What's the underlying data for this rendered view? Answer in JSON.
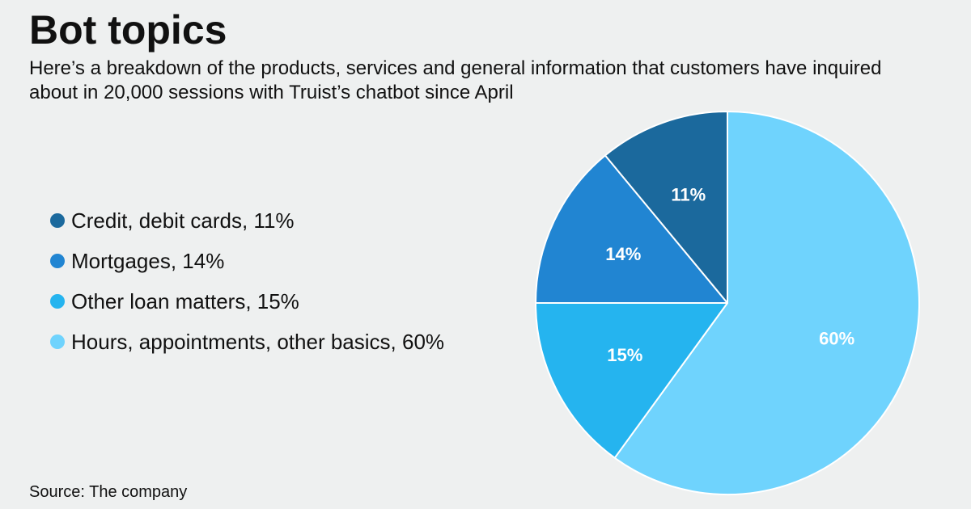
{
  "title": "Bot topics",
  "subtitle": "Here’s a breakdown of the products, services and general information that customers have inquired about in 20,000 sessions with Truist’s chatbot since April",
  "source": "Source: The company",
  "chart_data": {
    "type": "pie",
    "title": "Bot topics",
    "legend_position": "left",
    "start_angle": "12 o'clock, clockwise",
    "slices": [
      {
        "name": "Hours, appointments, other basics",
        "value": 60,
        "label": "60%",
        "color": "#6fd3fd"
      },
      {
        "name": "Other loan matters",
        "value": 15,
        "label": "15%",
        "color": "#25b4ef"
      },
      {
        "name": "Mortgages",
        "value": 14,
        "label": "14%",
        "color": "#2185d2"
      },
      {
        "name": "Credit, debit cards",
        "value": 11,
        "label": "11%",
        "color": "#1b699d"
      }
    ]
  },
  "legend": [
    {
      "label": "Credit, debit cards, 11%",
      "color": "#1b699d"
    },
    {
      "label": "Mortgages, 14%",
      "color": "#2185d2"
    },
    {
      "label": "Other loan matters, 15%",
      "color": "#25b4ef"
    },
    {
      "label": "Hours, appointments, other basics, 60%",
      "color": "#6fd3fd"
    }
  ]
}
